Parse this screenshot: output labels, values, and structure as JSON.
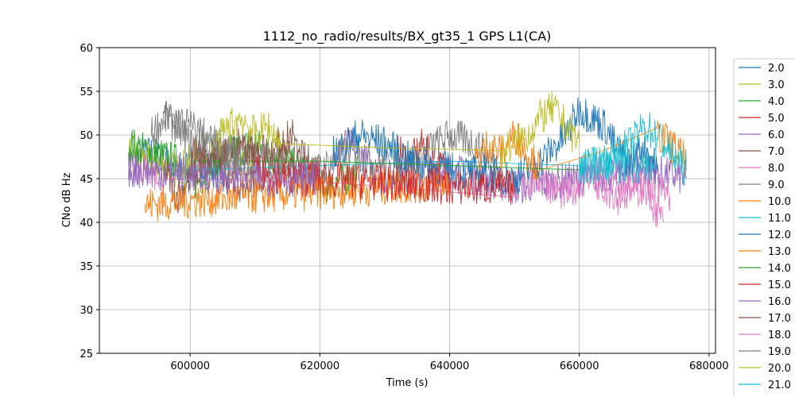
{
  "chart_data": {
    "type": "line",
    "title": "1112_no_radio/results/BX_gt35_1 GPS L1(CA)",
    "xlabel": "Time (s)",
    "ylabel": "CNo dB Hz",
    "xlim": [
      586000,
      681000
    ],
    "ylim": [
      25,
      60
    ],
    "xticks": [
      600000,
      620000,
      640000,
      660000,
      680000
    ],
    "yticks": [
      25,
      30,
      35,
      40,
      45,
      50,
      55,
      60
    ],
    "grid": true,
    "legend_position": "right",
    "series": [
      {
        "name": "2.0",
        "color": "#1f77b4",
        "x": [
          590500,
          594000,
          598000,
          602000,
          606000
        ],
        "y": [
          47,
          48,
          46,
          47,
          45
        ]
      },
      {
        "name": "3.0",
        "color": "#bcbd22",
        "x": [
          590500,
          594000,
          598000,
          602000,
          606000,
          610000
        ],
        "y": [
          48,
          47,
          46,
          48,
          47,
          46
        ]
      },
      {
        "name": "4.0",
        "color": "#2ca02c",
        "x": [
          590500,
          594000,
          598000,
          600000,
          603000,
          606000,
          610000,
          614000,
          618000,
          620000,
          624000,
          626000
        ],
        "y": [
          49,
          48,
          47,
          44,
          46,
          48,
          49,
          47,
          46,
          44,
          45,
          46
        ]
      },
      {
        "name": "5.0",
        "color": "#d62728",
        "x": [
          632000,
          634000,
          636000,
          638000,
          640000
        ],
        "y": [
          48,
          47,
          49,
          46,
          47
        ]
      },
      {
        "name": "6.0",
        "color": "#9467bd",
        "x": [
          622000,
          624000,
          626000,
          628000,
          630000,
          640000,
          650000,
          660000,
          670000,
          676500
        ],
        "y": [
          47,
          49,
          48,
          46,
          45,
          46,
          44,
          45,
          46,
          45
        ]
      },
      {
        "name": "7.0",
        "color": "#8c564b",
        "x": [
          596000,
          598000,
          600000,
          604000,
          608000,
          612000,
          616000,
          620000
        ],
        "y": [
          46,
          43,
          45,
          47,
          44,
          46,
          48,
          46
        ]
      },
      {
        "name": "8.0",
        "color": "#e377c2",
        "x": [
          590500,
          593000,
          596000,
          650000,
          654000,
          658000,
          662000,
          666000,
          670000,
          674000
        ],
        "y": [
          47,
          46,
          45,
          44,
          45,
          43,
          46,
          44,
          45,
          43
        ]
      },
      {
        "name": "9.0",
        "color": "#7f7f7f",
        "x": [
          594000,
          596000,
          598000,
          600000,
          612000,
          616000,
          620000,
          624000,
          628000,
          632000,
          636000,
          640000,
          644000,
          648000
        ],
        "y": [
          50,
          52,
          51,
          49,
          47,
          45,
          46,
          48,
          47,
          46,
          48,
          50,
          49,
          46
        ]
      },
      {
        "name": "10.0",
        "color": "#ff7f0e",
        "x": [
          593000,
          600000,
          610000,
          620000,
          630000,
          640000
        ],
        "y": [
          42,
          42.5,
          43,
          43.5,
          44,
          44.5
        ]
      },
      {
        "name": "11.0",
        "color": "#17becf",
        "x": [
          600000,
          620000,
          640000,
          660000,
          672000
        ],
        "y": [
          46,
          46.5,
          47,
          46.5,
          46.5
        ]
      },
      {
        "name": "12.0",
        "color": "#1f77b4",
        "x": [
          622000,
          626000,
          630000,
          634000,
          640000,
          650000,
          654000,
          658000,
          660000,
          662000,
          664000,
          666000,
          668000,
          670000,
          672000
        ],
        "y": [
          48,
          50,
          49,
          47,
          46,
          45,
          47,
          50,
          53,
          52,
          51,
          48,
          47,
          49,
          46
        ]
      },
      {
        "name": "13.0",
        "color": "#ff7f0e",
        "x": [
          644000,
          646000,
          648000,
          650000,
          652000,
          654000,
          672000,
          674000,
          676500
        ],
        "y": [
          47,
          49,
          48,
          50,
          48,
          46,
          50,
          49,
          47
        ]
      },
      {
        "name": "14.0",
        "color": "#2ca02c",
        "x": [
          600000,
          620000,
          640000,
          660000
        ],
        "y": [
          47,
          47,
          46.5,
          46
        ]
      },
      {
        "name": "15.0",
        "color": "#d62728",
        "x": [
          610000,
          620000,
          630000,
          640000,
          650000
        ],
        "y": [
          45.5,
          45,
          44.5,
          44,
          44
        ]
      },
      {
        "name": "16.0",
        "color": "#9467bd",
        "x": [
          590500,
          600000,
          610000,
          620000
        ],
        "y": [
          46,
          45.5,
          45,
          45
        ]
      },
      {
        "name": "17.0",
        "color": "#8c564b",
        "x": [
          600000,
          604000,
          608000,
          612000,
          616000
        ],
        "y": [
          48,
          47,
          49,
          48,
          50
        ]
      },
      {
        "name": "18.0",
        "color": "#e377c2",
        "x": [
          662000,
          666000,
          670000,
          673000
        ],
        "y": [
          45,
          43,
          44,
          40
        ]
      },
      {
        "name": "19.0",
        "color": "#7f7f7f",
        "x": [
          596000,
          600000,
          604000,
          608000
        ],
        "y": [
          52,
          51,
          49,
          47
        ]
      },
      {
        "name": "20.0",
        "color": "#bcbd22",
        "x": [
          604000,
          606000,
          608000,
          610000,
          612000,
          614000,
          648000,
          652000,
          654000,
          656000,
          658000,
          660000
        ],
        "y": [
          49,
          51,
          52,
          50,
          51,
          49,
          48,
          50,
          52,
          53,
          51,
          49
        ]
      },
      {
        "name": "21.0",
        "color": "#17becf",
        "x": [
          660000,
          664000,
          668000,
          670000,
          672000,
          674000,
          676500
        ],
        "y": [
          46,
          47,
          49,
          51,
          50,
          48,
          46
        ]
      }
    ]
  }
}
